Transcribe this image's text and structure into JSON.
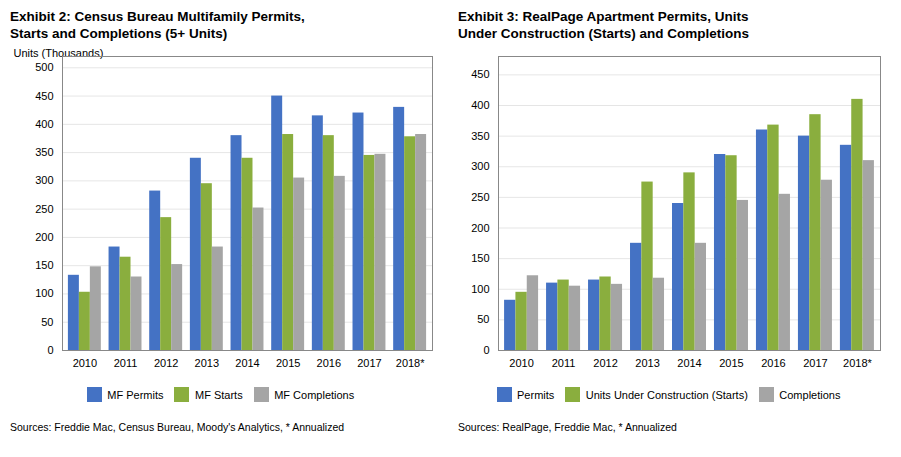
{
  "chart_data": [
    {
      "type": "bar",
      "title": "Exhibit 2: Census Bureau Multifamily Permits,\nStarts and Completions (5+ Units)",
      "categories": [
        "2010",
        "2011",
        "2012",
        "2013",
        "2014",
        "2015",
        "2016",
        "2017",
        "2018*"
      ],
      "series": [
        {
          "name": "MF Permits",
          "color": "#4472C4",
          "values": [
            133,
            183,
            282,
            340,
            380,
            450,
            415,
            420,
            430
          ]
        },
        {
          "name": "MF Starts",
          "color": "#8AAE3E",
          "values": [
            103,
            165,
            235,
            295,
            340,
            382,
            380,
            345,
            378
          ]
        },
        {
          "name": "MF Completions",
          "color": "#A5A5A5",
          "values": [
            148,
            130,
            152,
            183,
            252,
            305,
            308,
            347,
            382
          ]
        }
      ],
      "ylabel": "Units (Thousands)",
      "ylim": [
        0,
        520
      ],
      "yticks": [
        0,
        50,
        100,
        150,
        200,
        250,
        300,
        350,
        400,
        450,
        500
      ],
      "grid": true,
      "legend": "bottom",
      "source": "Sources: Freddie Mac, Census Bureau, Moody's Analytics, * Annualized"
    },
    {
      "type": "bar",
      "title": "Exhibit 3: RealPage Apartment Permits, Units\nUnder Construction (Starts) and Completions",
      "categories": [
        "2010",
        "2011",
        "2012",
        "2013",
        "2014",
        "2015",
        "2016",
        "2017",
        "2018*"
      ],
      "series": [
        {
          "name": "Permits",
          "color": "#4472C4",
          "values": [
            82,
            110,
            115,
            175,
            240,
            320,
            360,
            350,
            335
          ]
        },
        {
          "name": "Units Under Construction (Starts)",
          "color": "#8AAE3E",
          "values": [
            95,
            115,
            120,
            275,
            290,
            318,
            368,
            385,
            410
          ]
        },
        {
          "name": "Completions",
          "color": "#A5A5A5",
          "values": [
            122,
            105,
            108,
            118,
            175,
            245,
            255,
            278,
            310
          ]
        }
      ],
      "ylim": [
        0,
        480
      ],
      "yticks": [
        0,
        50,
        100,
        150,
        200,
        250,
        300,
        350,
        400,
        450
      ],
      "grid": true,
      "legend": "bottom",
      "source": "Sources: RealPage, Freddie Mac, * Annualized"
    }
  ]
}
